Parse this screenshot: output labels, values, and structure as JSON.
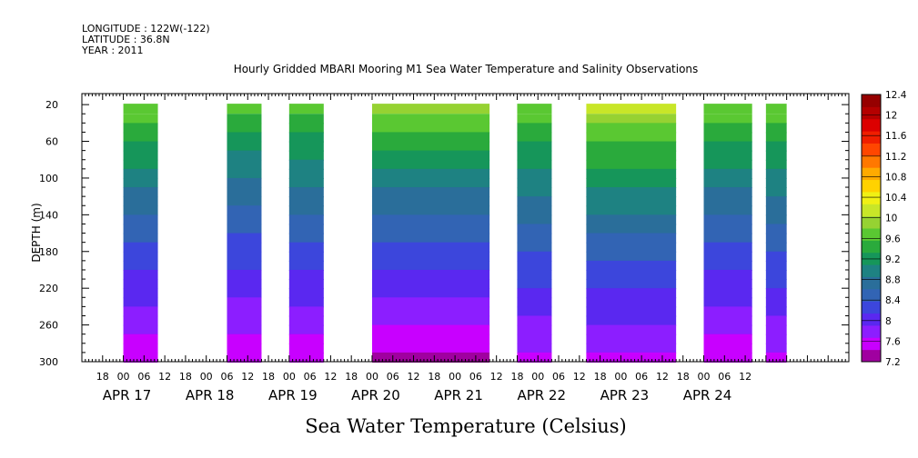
{
  "header": {
    "longitude": "LONGITUDE : 122W(-122)",
    "latitude": "LATITUDE : 36.8N",
    "year": "YEAR : 2011"
  },
  "chart_data": {
    "type": "heatmap",
    "title": "Hourly Gridded MBARI Mooring M1 Sea Water Temperature and Salinity Observations",
    "xlabel_caption": "Sea Water Temperature (Celsius)",
    "ylabel": "DEPTH (m)",
    "y_ticks": [
      20,
      60,
      100,
      140,
      180,
      220,
      260,
      300
    ],
    "ylim": [
      300,
      8
    ],
    "x_hour_labels": [
      "18",
      "00",
      "06",
      "12",
      "18",
      "00",
      "06",
      "12",
      "18",
      "00",
      "06",
      "12",
      "18",
      "00",
      "06",
      "12",
      "18",
      "00",
      "06",
      "12",
      "18",
      "00",
      "06",
      "12",
      "18",
      "00",
      "06",
      "12",
      "18",
      "00",
      "06",
      "12"
    ],
    "x_date_labels": [
      "APR 17",
      "APR 18",
      "APR 19",
      "APR 20",
      "APR 21",
      "APR 22",
      "APR 23",
      "APR 24"
    ],
    "colorbar_levels": [
      7.2,
      7.6,
      8,
      8.4,
      8.8,
      9.2,
      9.6,
      10,
      10.4,
      10.8,
      11.2,
      11.6,
      12,
      12.4
    ],
    "colorbar_labels": [
      "12.4",
      "12",
      "11.6",
      "11.2",
      "10.8",
      "10.4",
      "10",
      "9.6",
      "9.2",
      "8.8",
      "8.4",
      "8",
      "7.6",
      "7.2"
    ],
    "colorbar_colors": [
      "#a000a0",
      "#c800ff",
      "#8c1eff",
      "#5a28f0",
      "#3c46dc",
      "#3264b4",
      "#2a6e9a",
      "#1e8282",
      "#16965a",
      "#2aaa3c",
      "#5ac832",
      "#96d232",
      "#c8e628",
      "#f0f014",
      "#ffd200",
      "#ffaa00",
      "#ff7800",
      "#ff4600",
      "#f01e00",
      "#dc0000",
      "#b40000",
      "#960000"
    ],
    "data_blocks": [
      {
        "start_hour": 24,
        "end_hour": 34,
        "surface_temp": 9.9,
        "bottom_temp": 7.5
      },
      {
        "start_hour": 54,
        "end_hour": 64,
        "surface_temp": 9.7,
        "bottom_temp": 7.5
      },
      {
        "start_hour": 72,
        "end_hour": 82,
        "surface_temp": 9.8,
        "bottom_temp": 7.5
      },
      {
        "start_hour": 96,
        "end_hour": 130,
        "surface_temp": 10.0,
        "bottom_temp": 7.4
      },
      {
        "start_hour": 138,
        "end_hour": 148,
        "surface_temp": 9.9,
        "bottom_temp": 7.6
      },
      {
        "start_hour": 158,
        "end_hour": 184,
        "surface_temp": 10.2,
        "bottom_temp": 7.6
      },
      {
        "start_hour": 192,
        "end_hour": 206,
        "surface_temp": 9.9,
        "bottom_temp": 7.5
      },
      {
        "start_hour": 210,
        "end_hour": 216,
        "surface_temp": 9.9,
        "bottom_temp": 7.6
      }
    ]
  }
}
